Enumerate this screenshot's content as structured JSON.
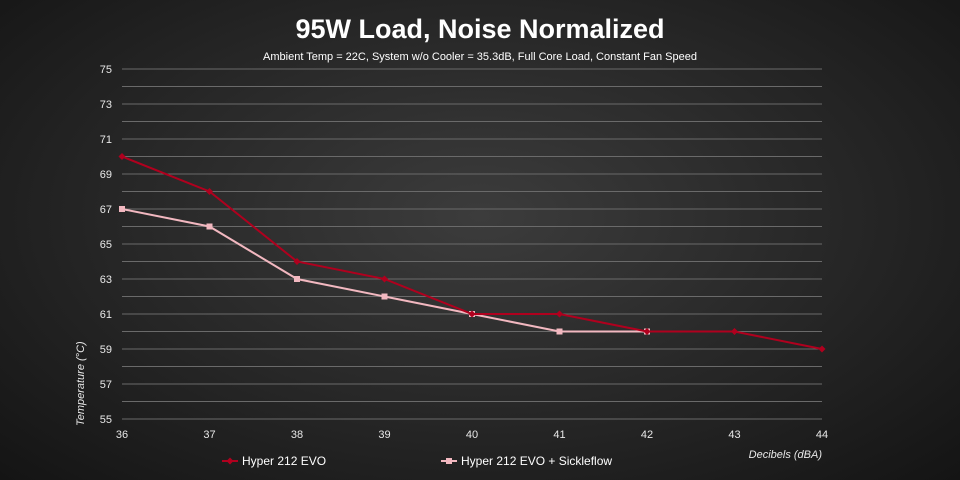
{
  "chart_data": {
    "type": "line",
    "title": "95W Load, Noise Normalized",
    "subtitle": "Ambient Temp = 22C, System w/o Cooler = 35.3dB, Full Core Load, Constant Fan Speed",
    "xlabel": "Decibels (dBA)",
    "ylabel": "Temperature (°C)",
    "x_ticks": [
      "36",
      "37",
      "38",
      "39",
      "40",
      "41",
      "42",
      "43",
      "44"
    ],
    "y_ticks": [
      "55",
      "57",
      "59",
      "61",
      "63",
      "65",
      "67",
      "69",
      "71",
      "73",
      "75"
    ],
    "xlim": [
      36,
      44
    ],
    "ylim": [
      55,
      75
    ],
    "grid": true,
    "legend_position": "bottom",
    "series": [
      {
        "name": "Hyper 212 EVO",
        "color": "#b0001e",
        "marker": "diamond",
        "x": [
          36,
          37,
          38,
          39,
          40,
          41,
          42,
          43,
          44
        ],
        "y": [
          70,
          68,
          64,
          63,
          61,
          61,
          60,
          60,
          59
        ]
      },
      {
        "name": "Hyper 212 EVO + Sickleflow",
        "color": "#f2b8c0",
        "marker": "square",
        "x": [
          36,
          37,
          38,
          39,
          40,
          41,
          42
        ],
        "y": [
          67,
          66,
          63,
          62,
          61,
          60,
          60
        ]
      }
    ]
  }
}
